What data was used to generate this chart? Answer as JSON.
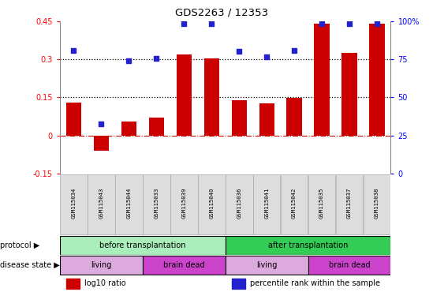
{
  "title": "GDS2263 / 12353",
  "samples": [
    "GSM115034",
    "GSM115043",
    "GSM115044",
    "GSM115033",
    "GSM115039",
    "GSM115040",
    "GSM115036",
    "GSM115041",
    "GSM115042",
    "GSM115035",
    "GSM115037",
    "GSM115038"
  ],
  "log10_ratio": [
    0.13,
    -0.06,
    0.055,
    0.07,
    0.32,
    0.305,
    0.14,
    0.125,
    0.148,
    0.44,
    0.325,
    0.44
  ],
  "percentile_rank": [
    0.335,
    0.045,
    0.295,
    0.305,
    0.44,
    0.44,
    0.33,
    0.31,
    0.335,
    0.44,
    0.44,
    0.44
  ],
  "ylim_left": [
    -0.15,
    0.45
  ],
  "ylim_right": [
    0,
    100
  ],
  "yticks_left": [
    -0.15,
    0,
    0.15,
    0.3,
    0.45
  ],
  "yticks_left_labels": [
    "-0.15",
    "0",
    "0.15",
    "0.3",
    "0.45"
  ],
  "yticks_right": [
    0,
    25,
    50,
    75,
    100
  ],
  "yticks_right_labels": [
    "0",
    "25",
    "50",
    "75",
    "100%"
  ],
  "hlines": [
    0.15,
    0.3
  ],
  "bar_color": "#cc0000",
  "dot_color": "#2222cc",
  "zero_line_color": "#cc0000",
  "protocol_groups": [
    {
      "label": "before transplantation",
      "start": 0,
      "end": 6,
      "color": "#aaeebb"
    },
    {
      "label": "after transplantation",
      "start": 6,
      "end": 12,
      "color": "#33cc55"
    }
  ],
  "disease_groups": [
    {
      "label": "living",
      "start": 0,
      "end": 3,
      "color": "#ddaadd"
    },
    {
      "label": "brain dead",
      "start": 3,
      "end": 6,
      "color": "#cc44cc"
    },
    {
      "label": "living",
      "start": 6,
      "end": 9,
      "color": "#ddaadd"
    },
    {
      "label": "brain dead",
      "start": 9,
      "end": 12,
      "color": "#cc44cc"
    }
  ],
  "legend_items": [
    {
      "label": "log10 ratio",
      "color": "#cc0000",
      "marker": "s"
    },
    {
      "label": "percentile rank within the sample",
      "color": "#2222cc",
      "marker": "s"
    }
  ],
  "bg_color": "#ffffff",
  "label_bg": "#dddddd",
  "left_label_protocol": "protocol",
  "left_label_disease": "disease state",
  "arrow": "▶"
}
